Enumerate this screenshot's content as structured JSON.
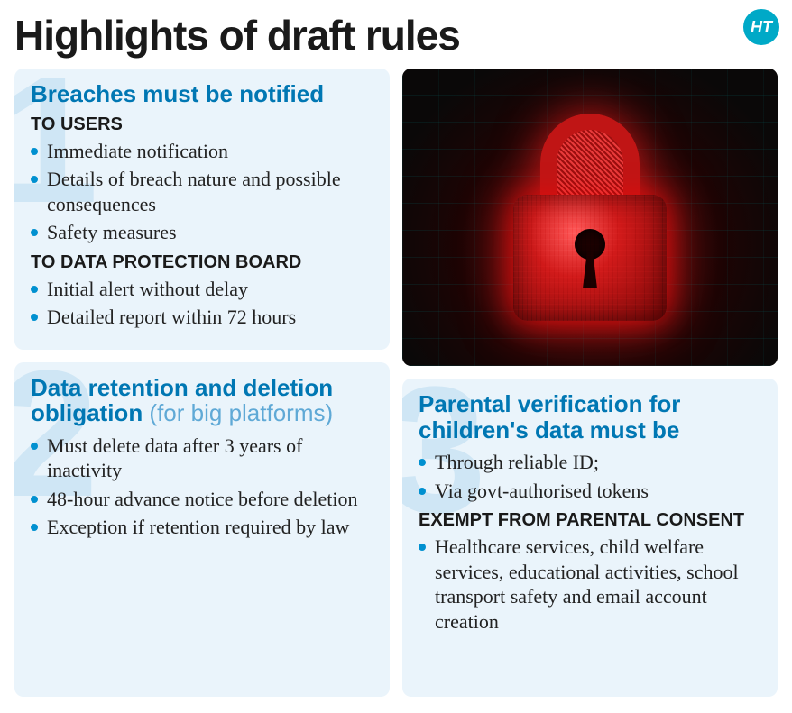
{
  "title": "Highlights of draft rules",
  "logo_text": "HT",
  "colors": {
    "card_bg": "#eaf4fb",
    "bg_number": "#cfe6f5",
    "heading_blue": "#0077b3",
    "heading_sub_blue": "#5fa9d6",
    "bullet_dot": "#0090d0",
    "text": "#222222",
    "logo_bg": "#00a9c7",
    "hero_glow": "#d11a1a"
  },
  "typography": {
    "title_fontsize": 46,
    "card_title_fontsize": 26,
    "subhead_fontsize": 20,
    "body_fontsize": 22
  },
  "sections": {
    "s1": {
      "number": "1",
      "title": "Breaches must be notified",
      "sub1_head": "TO USERS",
      "sub1_items": [
        "Immediate notification",
        "Details of breach nature and possible consequences",
        "Safety measures"
      ],
      "sub2_head": "TO DATA PROTECTION BOARD",
      "sub2_items": [
        "Initial alert without delay",
        "Detailed report within 72 hours"
      ]
    },
    "s2": {
      "number": "2",
      "title_main": "Data retention and deletion obligation",
      "title_sub": " (for big platforms)",
      "items": [
        "Must delete data after 3 years of inactivity",
        "48-hour advance notice before deletion",
        "Exception if retention required by law"
      ]
    },
    "s3": {
      "number": "3",
      "title": "Parental verification for children's data must be",
      "items": [
        "Through reliable ID;",
        "Via govt-authorised tokens"
      ],
      "sub_head": "EXEMPT FROM PARENTAL CONSENT",
      "sub_items": [
        "Healthcare services, child welfare services, educational activities, school transport safety and email account creation"
      ]
    }
  }
}
